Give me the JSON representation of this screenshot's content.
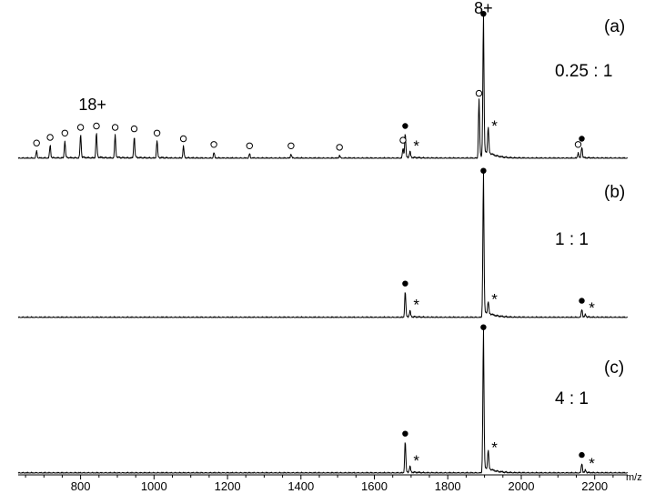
{
  "chart_data": {
    "type": "line",
    "description_axis": {
      "xlabel": "m/z",
      "xlim": [
        630,
        2290
      ],
      "xticks": [
        800,
        1000,
        1200,
        1400,
        1600,
        1800,
        2000,
        2200
      ]
    },
    "marker_legend": {
      "filled_circle": "filled-circle",
      "open_circle": "open-circle",
      "star": "*"
    },
    "panels": [
      {
        "panel_label": "(a)",
        "ratio_label": "0.25 : 1",
        "charge_labels": [
          {
            "text": "8+",
            "x": 1897
          },
          {
            "text": "18+",
            "x": 800
          }
        ],
        "peaks": [
          {
            "x": 680,
            "y": 0.05,
            "marker": "open"
          },
          {
            "x": 717,
            "y": 0.09,
            "marker": "open"
          },
          {
            "x": 757,
            "y": 0.12,
            "marker": "open"
          },
          {
            "x": 800,
            "y": 0.16,
            "marker": "open"
          },
          {
            "x": 843,
            "y": 0.17,
            "marker": "open"
          },
          {
            "x": 894,
            "y": 0.16,
            "marker": "open"
          },
          {
            "x": 946,
            "y": 0.15,
            "marker": "open"
          },
          {
            "x": 1008,
            "y": 0.12,
            "marker": "open"
          },
          {
            "x": 1080,
            "y": 0.08,
            "marker": "open"
          },
          {
            "x": 1163,
            "y": 0.04,
            "marker": "open"
          },
          {
            "x": 1260,
            "y": 0.03,
            "marker": "open"
          },
          {
            "x": 1373,
            "y": 0.03,
            "marker": "open"
          },
          {
            "x": 1505,
            "y": 0.02,
            "marker": "open"
          },
          {
            "x": 1678,
            "y": 0.07,
            "marker": "open"
          },
          {
            "x": 1684,
            "y": 0.17,
            "marker": "filled"
          },
          {
            "x": 1697,
            "y": 0.04,
            "marker": "star"
          },
          {
            "x": 1885,
            "y": 0.4,
            "marker": "open"
          },
          {
            "x": 1897,
            "y": 0.96,
            "marker": "filled"
          },
          {
            "x": 1910,
            "y": 0.18,
            "marker": "star"
          },
          {
            "x": 2155,
            "y": 0.04,
            "marker": "open"
          },
          {
            "x": 2165,
            "y": 0.08,
            "marker": "filled"
          }
        ]
      },
      {
        "panel_label": "(b)",
        "ratio_label": "1 : 1",
        "charge_labels": [],
        "peaks": [
          {
            "x": 1684,
            "y": 0.18,
            "marker": "filled"
          },
          {
            "x": 1697,
            "y": 0.04,
            "marker": "star"
          },
          {
            "x": 1897,
            "y": 0.97,
            "marker": "filled"
          },
          {
            "x": 1910,
            "y": 0.08,
            "marker": "star"
          },
          {
            "x": 2165,
            "y": 0.06,
            "marker": "filled"
          },
          {
            "x": 2175,
            "y": 0.02,
            "marker": "star"
          }
        ]
      },
      {
        "panel_label": "(c)",
        "ratio_label": "4 : 1",
        "charge_labels": [],
        "peaks": [
          {
            "x": 1684,
            "y": 0.22,
            "marker": "filled"
          },
          {
            "x": 1697,
            "y": 0.04,
            "marker": "star"
          },
          {
            "x": 1897,
            "y": 0.97,
            "marker": "filled"
          },
          {
            "x": 1910,
            "y": 0.13,
            "marker": "star"
          },
          {
            "x": 2165,
            "y": 0.07,
            "marker": "filled"
          },
          {
            "x": 2175,
            "y": 0.02,
            "marker": "star"
          }
        ]
      }
    ]
  }
}
